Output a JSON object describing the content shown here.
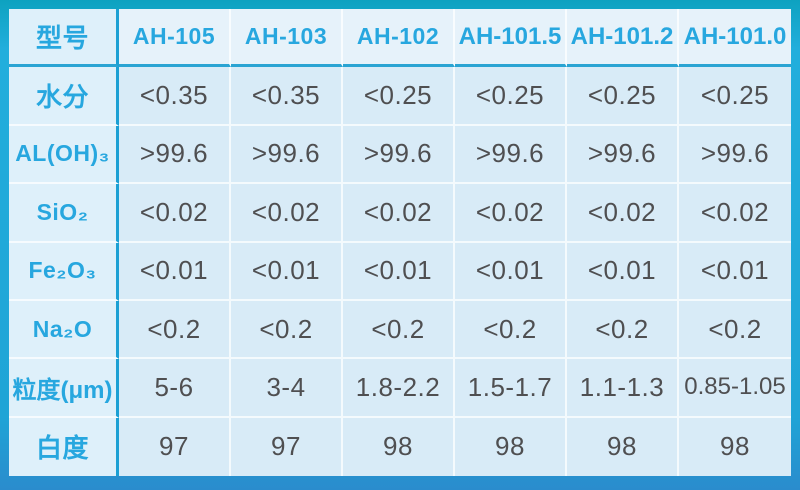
{
  "chart_data": {
    "type": "table",
    "title": "",
    "columns": [
      "型号",
      "AH-105",
      "AH-103",
      "AH-102",
      "AH-101.5",
      "AH-101.2",
      "AH-101.0"
    ],
    "rows": [
      [
        "水分",
        "<0.35",
        "<0.35",
        "<0.25",
        "<0.25",
        "<0.25",
        "<0.25"
      ],
      [
        "AL(OH)₃",
        ">99.6",
        ">99.6",
        ">99.6",
        ">99.6",
        ">99.6",
        ">99.6"
      ],
      [
        "SiO₂",
        "<0.02",
        "<0.02",
        "<0.02",
        "<0.02",
        "<0.02",
        "<0.02"
      ],
      [
        "Fe₂O₃",
        "<0.01",
        "<0.01",
        "<0.01",
        "<0.01",
        "<0.01",
        "<0.01"
      ],
      [
        "Na₂O",
        "<0.2",
        "<0.2",
        "<0.2",
        "<0.2",
        "<0.2",
        "<0.2"
      ],
      [
        "粒度(μm)",
        "5-6",
        "3-4",
        "1.8-2.2",
        "1.5-1.7",
        "1.1-1.3",
        "0.85-1.05"
      ],
      [
        "白度",
        "97",
        "97",
        "98",
        "98",
        "98",
        "98"
      ]
    ],
    "layout_hints": {
      "header_row": true,
      "label_column": true,
      "grid": "on"
    }
  },
  "colors": {
    "frame_accent": "#1fa6d6",
    "frame_bottom": "#2a8ccd",
    "header_text": "#27a7df",
    "value_text": "#4f4f51",
    "header_bg": "#e6f2fa",
    "label_bg": "#def0fa",
    "cell_bg": "#d8ebf7"
  }
}
